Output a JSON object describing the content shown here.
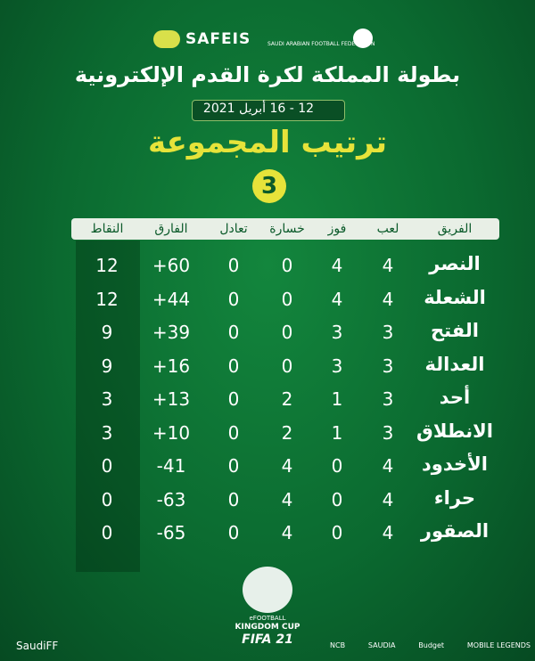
{
  "header": {
    "safeis": "SAFEIS",
    "federation": "SAUDI ARABIAN FOOTBALL FEDERATION",
    "title": "بطولة المملكة لكرة القدم الإلكترونية",
    "date": "12 - 16 أبريل 2021",
    "subtitle": "ترتيب المجموعة",
    "group": "3"
  },
  "table": {
    "columns": [
      "الفريق",
      "لعب",
      "فوز",
      "خسارة",
      "تعادل",
      "الفارق",
      "النقاط"
    ],
    "rows": [
      [
        "النصر",
        "4",
        "4",
        "0",
        "0",
        "+60",
        "12"
      ],
      [
        "الشعلة",
        "4",
        "4",
        "0",
        "0",
        "+44",
        "12"
      ],
      [
        "الفتح",
        "3",
        "3",
        "0",
        "0",
        "+39",
        "9"
      ],
      [
        "العدالة",
        "3",
        "3",
        "0",
        "0",
        "+16",
        "9"
      ],
      [
        "أحد",
        "3",
        "1",
        "2",
        "0",
        "+13",
        "3"
      ],
      [
        "الانطلاق",
        "3",
        "1",
        "2",
        "0",
        "+10",
        "3"
      ],
      [
        "الأخدود",
        "4",
        "0",
        "4",
        "0",
        "-41",
        "0"
      ],
      [
        "حراء",
        "4",
        "0",
        "4",
        "0",
        "-63",
        "0"
      ],
      [
        "الصقور",
        "4",
        "0",
        "4",
        "0",
        "-65",
        "0"
      ]
    ]
  },
  "footer": {
    "handle": "SaudiFF",
    "efootball": "eFOOTBALL",
    "cup": "KINGDOM CUP",
    "game": "FIFA 21",
    "sponsors": [
      "NCB",
      "SAUDIA",
      "Budget",
      "MOBILE LEGENDS"
    ]
  }
}
